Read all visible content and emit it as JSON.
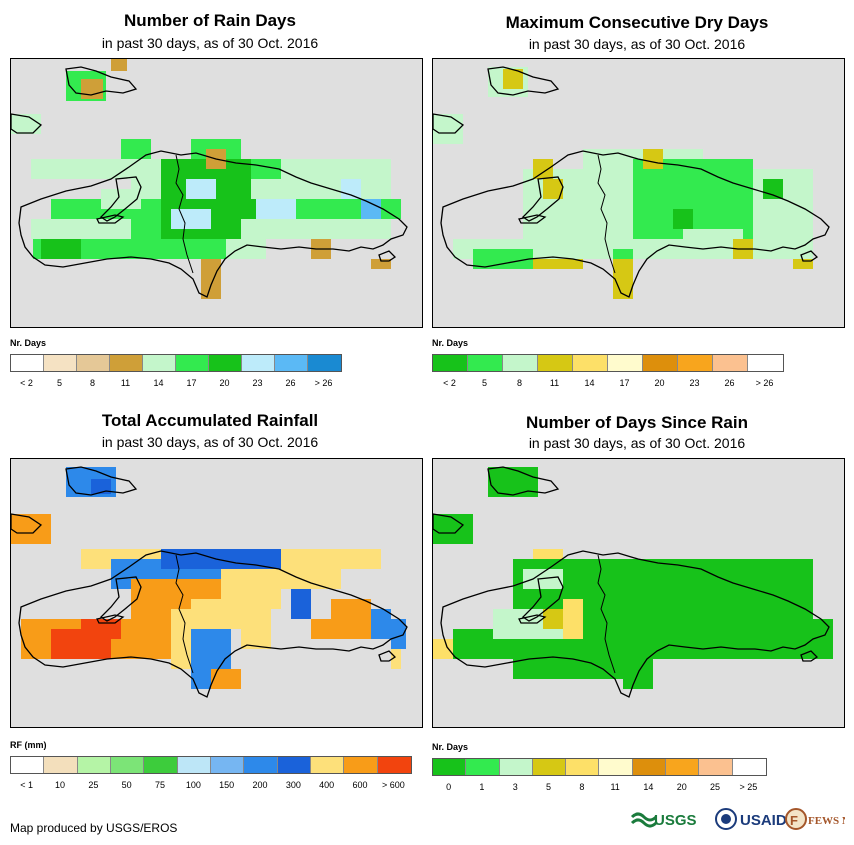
{
  "panels": {
    "rain_days": {
      "title": "Number of Rain Days",
      "subtitle": "in past 30 days, as of 30 Oct. 2016",
      "legend_title": "Nr. Days",
      "legend_colors": [
        "#ffffff",
        "#f5e2c3",
        "#e5c897",
        "#cf9f38",
        "#c4f6cb",
        "#33ea4f",
        "#17c21a",
        "#bdebfa",
        "#5bb9f5",
        "#1a8ad2"
      ],
      "legend_labels": [
        "< 2",
        "5",
        "8",
        "11",
        "14",
        "17",
        "20",
        "23",
        "26",
        "> 26"
      ],
      "colors": {
        "light": "#c4f6cb",
        "mid": "#33ea4f",
        "dark": "#17c21a",
        "blue": "#bdebfa",
        "blue2": "#5bb9f5",
        "brown": "#cf9f38",
        "tan": "#e5c897"
      }
    },
    "dry_days": {
      "title": "Maximum Consecutive Dry Days",
      "subtitle": "in past 30 days, as of 30 Oct. 2016",
      "legend_title": "Nr. Days",
      "legend_colors": [
        "#17c21a",
        "#33ea4f",
        "#c4f6cb",
        "#d6c814",
        "#fde068",
        "#fffbcd",
        "#dd8f0c",
        "#f8a51d",
        "#fbc190",
        "#ffffff"
      ],
      "legend_labels": [
        "< 2",
        "5",
        "8",
        "11",
        "14",
        "17",
        "20",
        "23",
        "26",
        "> 26"
      ],
      "colors": {
        "light": "#c4f6cb",
        "mid": "#33ea4f",
        "dark": "#17c21a",
        "yellow": "#d6c814",
        "pale": "#fde068"
      }
    },
    "rainfall": {
      "title": "Total Accumulated Rainfall",
      "subtitle": "in past 30 days, as of 30 Oct. 2016",
      "legend_title": "RF (mm)",
      "legend_colors": [
        "#ffffff",
        "#f3dfbc",
        "#b5f4a6",
        "#7ce477",
        "#3dcc3c",
        "#bde6f7",
        "#76b6f2",
        "#2d89ea",
        "#1a62da",
        "#fde07a",
        "#f89c18",
        "#f2440e"
      ],
      "legend_labels": [
        "< 1",
        "10",
        "25",
        "50",
        "75",
        "100",
        "150",
        "200",
        "300",
        "400",
        "600",
        "> 600"
      ],
      "colors": {
        "pale": "#fde07a",
        "orange": "#f89c18",
        "red": "#f2440e",
        "blue": "#2d89ea",
        "blue2": "#1a62da"
      }
    },
    "since_rain": {
      "title": "Number of Days Since Rain",
      "subtitle": "in past 30 days, as of 30 Oct. 2016",
      "legend_title": "Nr. Days",
      "legend_colors": [
        "#17c21a",
        "#33ea4f",
        "#c4f6cb",
        "#d6c814",
        "#fde068",
        "#fffbcd",
        "#dd8f0c",
        "#f8a51d",
        "#fbc190",
        "#ffffff"
      ],
      "legend_labels": [
        "0",
        "1",
        "3",
        "5",
        "8",
        "11",
        "14",
        "20",
        "25",
        "> 25"
      ],
      "colors": {
        "dark": "#17c21a",
        "mid": "#33ea4f",
        "light": "#c4f6cb",
        "yellow": "#d6c814",
        "pale": "#fde068"
      }
    }
  },
  "footer": "Map produced by USGS/EROS",
  "logos": {
    "usgs": "USGS",
    "usaid": "USAID",
    "fews": "FEWS NET"
  }
}
